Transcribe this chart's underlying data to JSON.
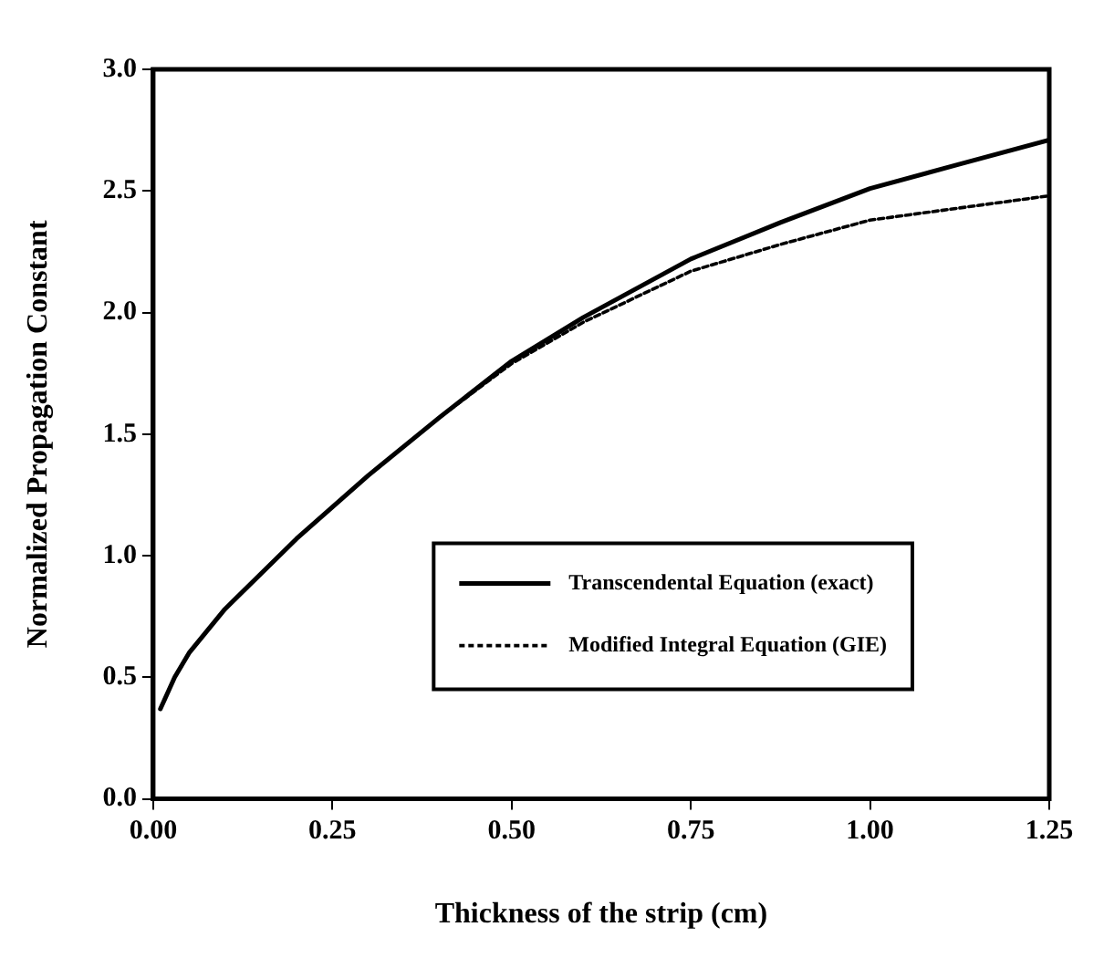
{
  "chart_data": {
    "type": "line",
    "xlabel": "Thickness of the strip (cm)",
    "ylabel": "Normalized Propagation Constant",
    "xlim": [
      0,
      1.25
    ],
    "xticks": [
      {
        "value": 0,
        "label": "0.00"
      },
      0.25,
      {
        "value": 0.5,
        "label": "0.50"
      },
      0.75,
      {
        "value": 1,
        "label": "1.00"
      },
      1.25
    ],
    "ylim": [
      0,
      3
    ],
    "yticks": [
      {
        "value": 0,
        "label": "0.0"
      },
      0.5,
      {
        "value": 1,
        "label": "1.0"
      },
      1.5,
      {
        "value": 2,
        "label": "2.0"
      },
      2.5,
      {
        "value": 3,
        "label": "3.0"
      }
    ],
    "grid": false,
    "legend": "bottom right",
    "marker": "none",
    "series": [
      {
        "name": "Transcendental Equation (exact)",
        "color": "#000000",
        "line_style": "solid",
        "x": [
          0.01,
          0.03,
          0.05,
          0.1,
          0.2,
          0.3,
          0.4,
          0.5,
          0.6,
          0.75,
          0.875,
          1.0,
          1.125,
          1.25
        ],
        "values": [
          0.37,
          0.5,
          0.6,
          0.78,
          1.07,
          1.33,
          1.57,
          1.8,
          1.98,
          2.22,
          2.37,
          2.51,
          2.61,
          2.71
        ]
      },
      {
        "name": "Modified Integral Equation (GIE)",
        "color": "#000000",
        "line_style": "dotted",
        "x": [
          0.01,
          0.03,
          0.05,
          0.1,
          0.2,
          0.3,
          0.4,
          0.5,
          0.6,
          0.75,
          0.875,
          1.0,
          1.125,
          1.25
        ],
        "values": [
          0.37,
          0.5,
          0.6,
          0.78,
          1.07,
          1.33,
          1.57,
          1.79,
          1.96,
          2.17,
          2.28,
          2.38,
          2.43,
          2.48
        ]
      }
    ]
  }
}
